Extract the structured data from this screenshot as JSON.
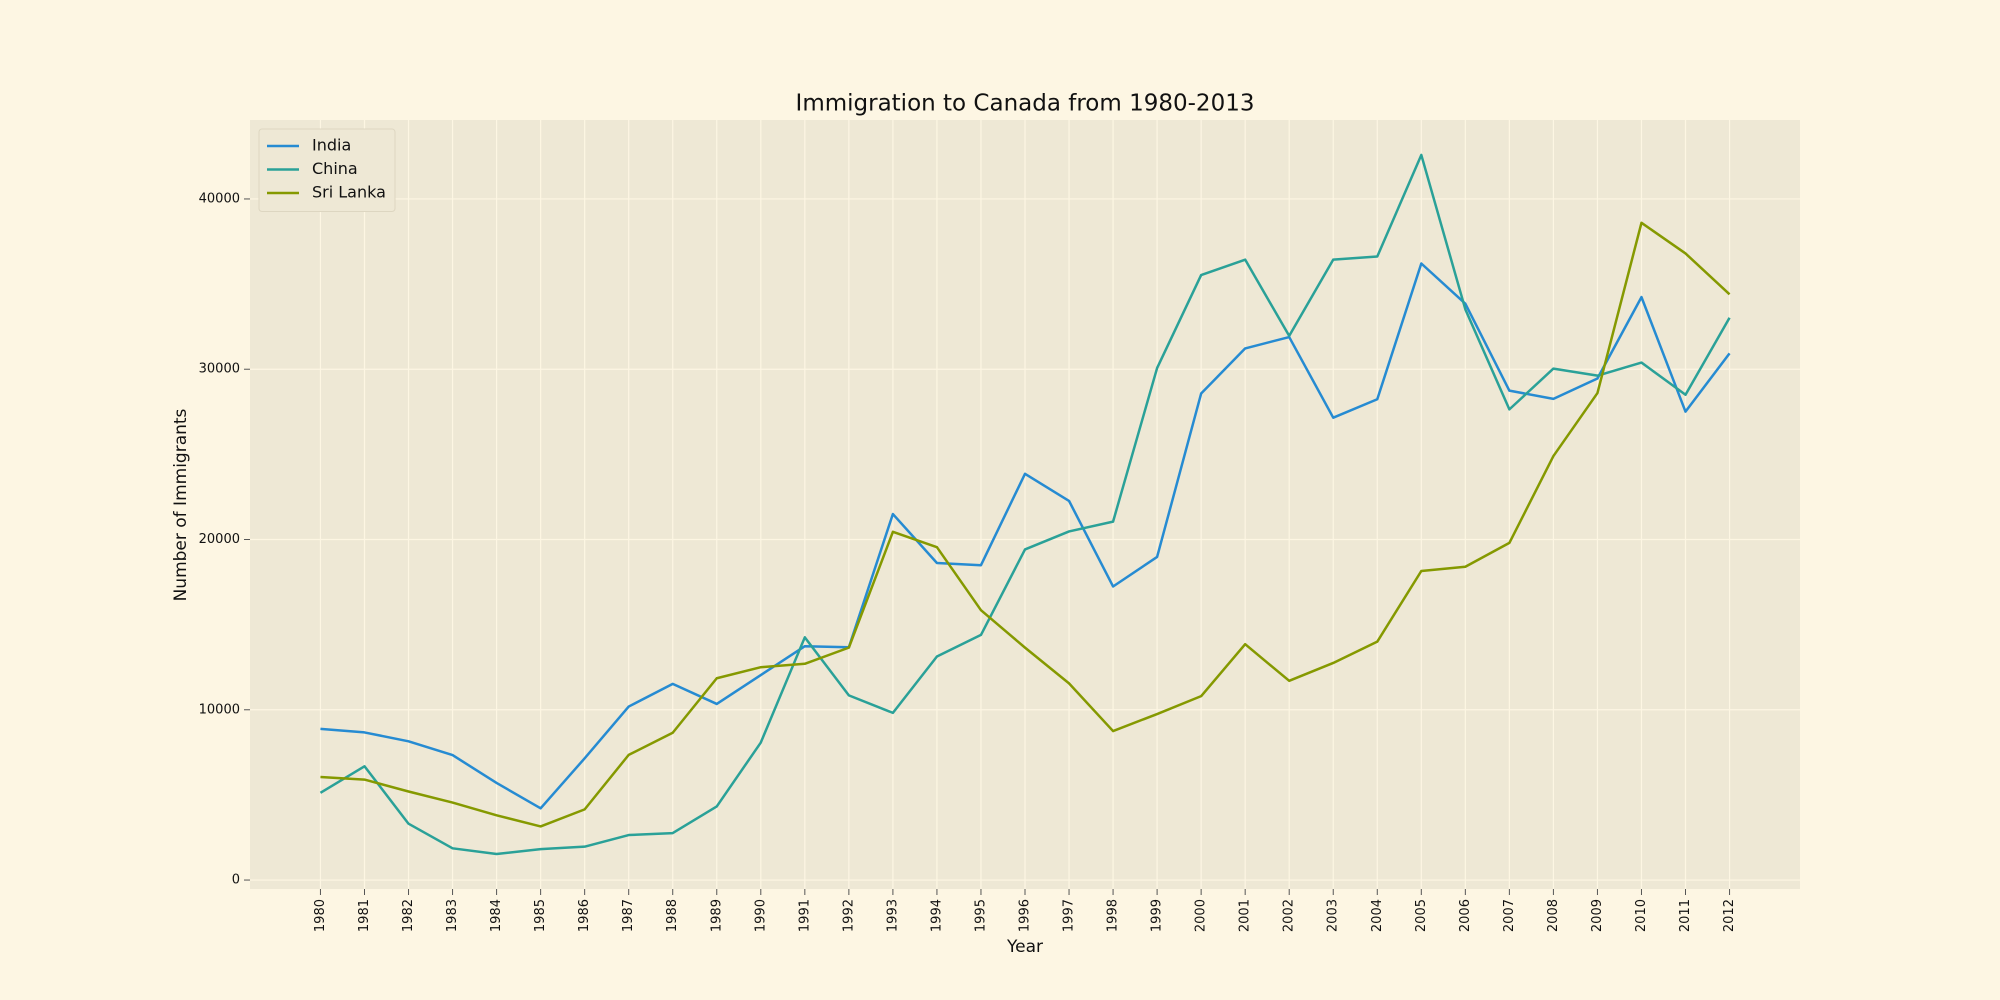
{
  "chart_data": {
    "type": "line",
    "title": "Immigration to Canada from 1980-2013",
    "x_label": "Year",
    "y_label": "Number of Immigrants",
    "x": [
      1980,
      1981,
      1982,
      1983,
      1984,
      1985,
      1986,
      1987,
      1988,
      1989,
      1990,
      1991,
      1992,
      1993,
      1994,
      1995,
      1996,
      1997,
      1998,
      1999,
      2000,
      2001,
      2002,
      2003,
      2004,
      2005,
      2006,
      2007,
      2008,
      2009,
      2010,
      2011,
      2012
    ],
    "xticks": [
      1980,
      1981,
      1982,
      1983,
      1984,
      1985,
      1986,
      1987,
      1988,
      1989,
      1990,
      1991,
      1992,
      1993,
      1994,
      1995,
      1996,
      1997,
      1998,
      1999,
      2000,
      2001,
      2002,
      2003,
      2004,
      2005,
      2006,
      2007,
      2008,
      2009,
      2010,
      2011,
      2012
    ],
    "xlim": [
      1978.4,
      2013.6
    ],
    "ylim": [
      -526,
      44637
    ],
    "yticks": [
      0,
      10000,
      20000,
      30000,
      40000
    ],
    "grid": true,
    "legend": "upper-left",
    "series": [
      {
        "name": "India",
        "color": "#268bd2",
        "values": [
          8880,
          8670,
          8147,
          7338,
          5704,
          4211,
          7150,
          10189,
          11522,
          10343,
          12041,
          13734,
          13673,
          21496,
          18620,
          18489,
          23859,
          22268,
          17241,
          18974,
          28572,
          31223,
          31889,
          27155,
          28235,
          36210,
          33848,
          28742,
          28261,
          29456,
          34235,
          27509,
          30933
        ]
      },
      {
        "name": "China",
        "color": "#2aa198",
        "values": [
          5123,
          6682,
          3308,
          1863,
          1527,
          1816,
          1960,
          2643,
          2758,
          4323,
          8076,
          14255,
          10846,
          9817,
          13128,
          14398,
          19415,
          20475,
          21049,
          30069,
          35529,
          36434,
          31961,
          36439,
          36619,
          42584,
          33518,
          27642,
          30037,
          29622,
          30391,
          28502,
          33024
        ]
      },
      {
        "name": "Sri Lanka",
        "color": "#859900",
        "values": [
          6050,
          5900,
          5200,
          4550,
          3800,
          3150,
          4150,
          7350,
          8650,
          11850,
          12500,
          12700,
          13650,
          20450,
          19550,
          15850,
          13650,
          11550,
          8750,
          9750,
          10800,
          13850,
          11700,
          12750,
          14000,
          18150,
          18400,
          19800,
          24900,
          28600,
          38600,
          36800,
          34400
        ]
      }
    ]
  }
}
